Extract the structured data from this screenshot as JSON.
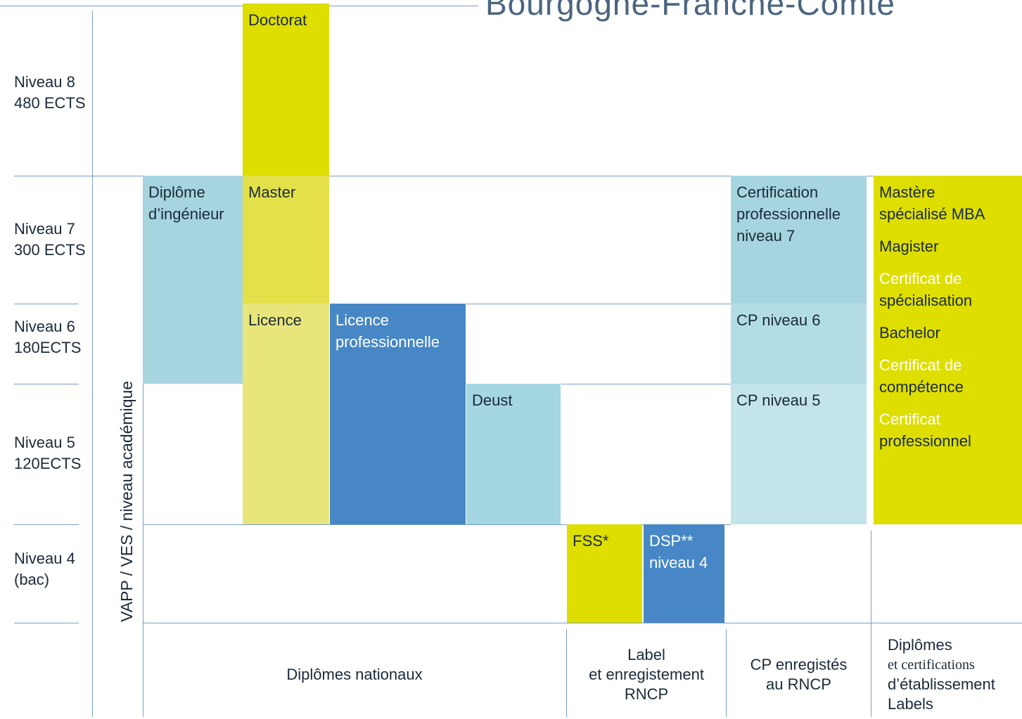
{
  "header": {
    "title": "Bourgogne-Franche-Comté"
  },
  "levels": [
    {
      "name": "Niveau 8",
      "ects": "480 ECTS"
    },
    {
      "name": "Niveau 7",
      "ects": "300 ECTS"
    },
    {
      "name": "Niveau 6",
      "ects": "180ECTS"
    },
    {
      "name": "Niveau 5",
      "ects": "120ECTS"
    },
    {
      "name": "Niveau 4",
      "ects": "(bac)"
    }
  ],
  "side_label": "VAPP / VES / niveau académique",
  "boxes": [
    {
      "lines": [
        "Doctorat"
      ]
    },
    {
      "lines": [
        "Master"
      ]
    },
    {
      "lines": [
        "Licence"
      ]
    },
    {
      "lines": [
        "Diplôme",
        "d’ingénieur"
      ]
    },
    {
      "lines": [
        "Licence",
        "professionnelle"
      ]
    },
    {
      "lines": [
        "Deust"
      ]
    },
    {
      "lines": [
        "FSS*"
      ]
    },
    {
      "lines": [
        "DSP**",
        "niveau 4"
      ]
    },
    {
      "lines": [
        "Certification",
        "professionnelle",
        "niveau 7"
      ]
    },
    {
      "lines": [
        "CP niveau 6"
      ]
    },
    {
      "lines": [
        "CP niveau 5"
      ]
    },
    {
      "lines": [
        "Mastère",
        "spécialisé MBA",
        "Magister",
        "Certificat de",
        "spécialisation",
        "Bachelor",
        "Certificat de",
        "compétence",
        "Certificat",
        "professionnel"
      ]
    }
  ],
  "columns": [
    {
      "lines": [
        "Diplômes nationaux"
      ]
    },
    {
      "lines": [
        "Label",
        "et enregistement",
        "RNCP"
      ]
    },
    {
      "lines": [
        "CP enregistés",
        "au RNCP"
      ]
    },
    {
      "lines": [
        "Diplômes",
        "et certifications",
        "d’établissement",
        "Labels"
      ]
    }
  ]
}
